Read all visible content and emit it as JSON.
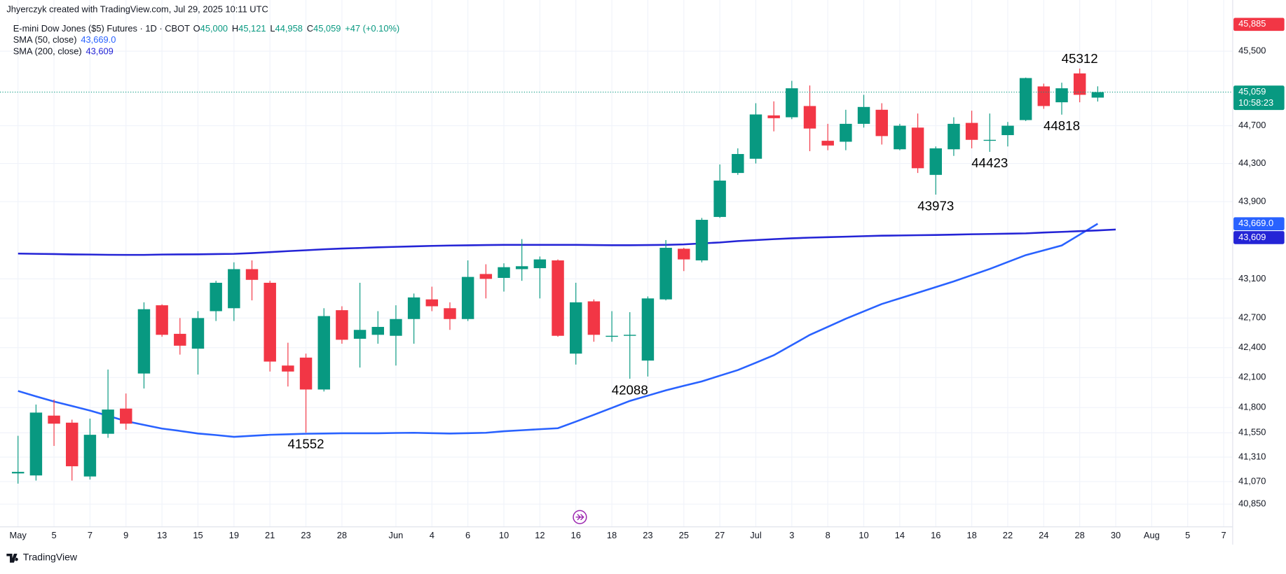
{
  "header": {
    "attribution": "Jhyerczyk created with TradingView.com, Jul 29, 2025 10:11 UTC",
    "footer": "TradingView"
  },
  "chart_data": {
    "type": "candlestick",
    "title": "E-mini Dow Jones ($5) Futures · 1D · CBOT",
    "ohlc_legend": [
      {
        "key": "O",
        "text": "45,000"
      },
      {
        "key": "H",
        "text": "45,121"
      },
      {
        "key": "L",
        "text": "44,958"
      },
      {
        "key": "C",
        "text": "45,059"
      }
    ],
    "change": "+47 (+0.10%)",
    "categories": [
      "May",
      null,
      "5",
      null,
      "7",
      null,
      "9",
      null,
      "13",
      null,
      "15",
      null,
      "19",
      null,
      "21",
      null,
      "23",
      null,
      "28",
      null,
      null,
      "Jun",
      null,
      "4",
      null,
      "6",
      null,
      "10",
      null,
      "12",
      null,
      "16",
      null,
      "18",
      null,
      "23",
      null,
      "25",
      null,
      "27",
      null,
      "Jul",
      null,
      "3",
      null,
      "8",
      null,
      "10",
      null,
      "14",
      null,
      "16",
      null,
      "18",
      null,
      "22",
      null,
      "24",
      null,
      "28",
      null,
      "30",
      null,
      "Aug",
      null,
      "5",
      null,
      "7"
    ],
    "open": [
      41150,
      41130,
      41720,
      41650,
      41120,
      41540,
      41790,
      42140,
      42830,
      42540,
      42390,
      42770,
      42800,
      43200,
      43060,
      42220,
      42300,
      41980,
      42780,
      42490,
      42530,
      42520,
      42690,
      42890,
      42800,
      42690,
      43150,
      43110,
      43200,
      43210,
      43290,
      42340,
      42870,
      42510,
      42520,
      42270,
      42890,
      43410,
      43290,
      43740,
      44200,
      44350,
      44810,
      44790,
      44910,
      44540,
      44530,
      44720,
      44870,
      44450,
      44680,
      44180,
      44450,
      44730,
      44540,
      44600,
      44760,
      45120,
      44950,
      45260,
      45000,
      null,
      null,
      null,
      null,
      null,
      null,
      null
    ],
    "high": [
      41520,
      41830,
      41880,
      41680,
      41690,
      42180,
      41940,
      42860,
      42840,
      42700,
      42770,
      43080,
      43270,
      43290,
      43080,
      42450,
      42340,
      42800,
      42820,
      43060,
      42770,
      42830,
      42950,
      43020,
      42860,
      43290,
      43250,
      43260,
      43510,
      43330,
      43300,
      43060,
      42890,
      42770,
      42760,
      42920,
      43500,
      43420,
      43730,
      44290,
      44460,
      44940,
      44960,
      45180,
      45130,
      44720,
      44870,
      45030,
      44940,
      44720,
      44830,
      44480,
      44790,
      44860,
      44830,
      44740,
      45215,
      45150,
      45160,
      45312,
      45121,
      null,
      null,
      null,
      null,
      null,
      null,
      null
    ],
    "low": [
      41050,
      41080,
      41420,
      41080,
      41090,
      41500,
      41580,
      41990,
      42510,
      42330,
      42130,
      42670,
      42670,
      42880,
      42160,
      42010,
      41552,
      41960,
      42440,
      42200,
      42440,
      42220,
      42440,
      42770,
      42580,
      42670,
      42900,
      42970,
      43080,
      42900,
      42510,
      42230,
      42460,
      42460,
      42088,
      42110,
      42880,
      43180,
      43270,
      43730,
      44180,
      44300,
      44640,
      44770,
      44430,
      44440,
      44440,
      44680,
      44500,
      44440,
      44200,
      43973,
      44380,
      44460,
      44423,
      44480,
      44750,
      44880,
      44818,
      44950,
      44958,
      null,
      null,
      null,
      null,
      null,
      null,
      null
    ],
    "close": [
      41165,
      41750,
      41640,
      41220,
      41530,
      41780,
      41640,
      42790,
      42530,
      42420,
      42700,
      43060,
      43200,
      43090,
      42260,
      42160,
      41980,
      42720,
      42480,
      42580,
      42610,
      42690,
      42910,
      42820,
      42690,
      43120,
      43100,
      43220,
      43230,
      43300,
      42520,
      42860,
      42530,
      42520,
      42530,
      42900,
      43420,
      43300,
      43710,
      44120,
      44400,
      44820,
      44780,
      45100,
      44670,
      44490,
      44720,
      44900,
      44590,
      44700,
      44250,
      44460,
      44720,
      44550,
      44550,
      44700,
      45210,
      44910,
      45100,
      45030,
      45059,
      null,
      null,
      null,
      null,
      null,
      null,
      null
    ],
    "up_color": "#089981",
    "down_color": "#f23645",
    "series": [
      {
        "name": "SMA (50, close)",
        "legend_value": "43,669.0",
        "color": "#2962ff",
        "values": [
          41965,
          41912,
          41860,
          41815,
          41770,
          41718,
          41665,
          41628,
          41592,
          41568,
          41543,
          41527,
          41510,
          41520,
          41530,
          41535,
          41540,
          41543,
          41545,
          41545,
          41545,
          41548,
          41550,
          41546,
          41543,
          41546,
          41550,
          41565,
          41575,
          41585,
          41595,
          41660,
          41728,
          41797,
          41866,
          41919,
          41972,
          42017,
          42061,
          42118,
          42174,
          42249,
          42324,
          42426,
          42529,
          42611,
          42693,
          42768,
          42843,
          42900,
          42958,
          43016,
          43074,
          43138,
          43202,
          43273,
          43344,
          43394,
          43444,
          43556,
          43669,
          null,
          null,
          null,
          null,
          null,
          null,
          null
        ]
      },
      {
        "name": "SMA (200, close)",
        "legend_value": "43,609",
        "color": "#2424d6",
        "values": [
          43360,
          43358,
          43355,
          43352,
          43350,
          43348,
          43347,
          43347,
          43350,
          43352,
          43353,
          43355,
          43358,
          43365,
          43375,
          43385,
          43395,
          43405,
          43412,
          43418,
          43425,
          43430,
          43435,
          43440,
          43443,
          43446,
          43448,
          43450,
          43450,
          43450,
          43450,
          43450,
          43448,
          43447,
          43447,
          43448,
          43450,
          43455,
          43465,
          43475,
          43490,
          43500,
          43510,
          43518,
          43525,
          43530,
          43535,
          43540,
          43545,
          43548,
          43550,
          43553,
          43556,
          43560,
          43563,
          43566,
          43570,
          43578,
          43585,
          43592,
          43600,
          43609,
          null,
          null,
          null,
          null,
          null,
          null
        ]
      }
    ],
    "ylim": [
      40630,
      45862
    ],
    "log_scale": true,
    "yticks": [
      {
        "value": 45500,
        "label": "45,500"
      },
      {
        "value": 44700,
        "label": "44,700"
      },
      {
        "value": 44300,
        "label": "44,300"
      },
      {
        "value": 43900,
        "label": "43,900"
      },
      {
        "value": 43100,
        "label": "43,100"
      },
      {
        "value": 42700,
        "label": "42,700"
      },
      {
        "value": 42400,
        "label": "42,400"
      },
      {
        "value": 42100,
        "label": "42,100"
      },
      {
        "value": 41800,
        "label": "41,800"
      },
      {
        "value": 41550,
        "label": "41,550"
      },
      {
        "value": 41310,
        "label": "41,310"
      },
      {
        "value": 41070,
        "label": "41,070"
      },
      {
        "value": 40850,
        "label": "40,850"
      }
    ],
    "grid": true,
    "annotations": [
      45312,
      44818,
      44423,
      43973,
      42088,
      41552
    ],
    "price_labels": [
      {
        "value": 45885,
        "label": "45,885",
        "color": "#f23645"
      },
      {
        "value": 45059,
        "label": "45,059",
        "sub": "10:58:23",
        "color": "#089981"
      },
      {
        "value": 43669,
        "label": "43,669.0",
        "color": "#2962ff"
      },
      {
        "value": 43609,
        "label": "43,609",
        "color": "#2424d6"
      }
    ]
  }
}
